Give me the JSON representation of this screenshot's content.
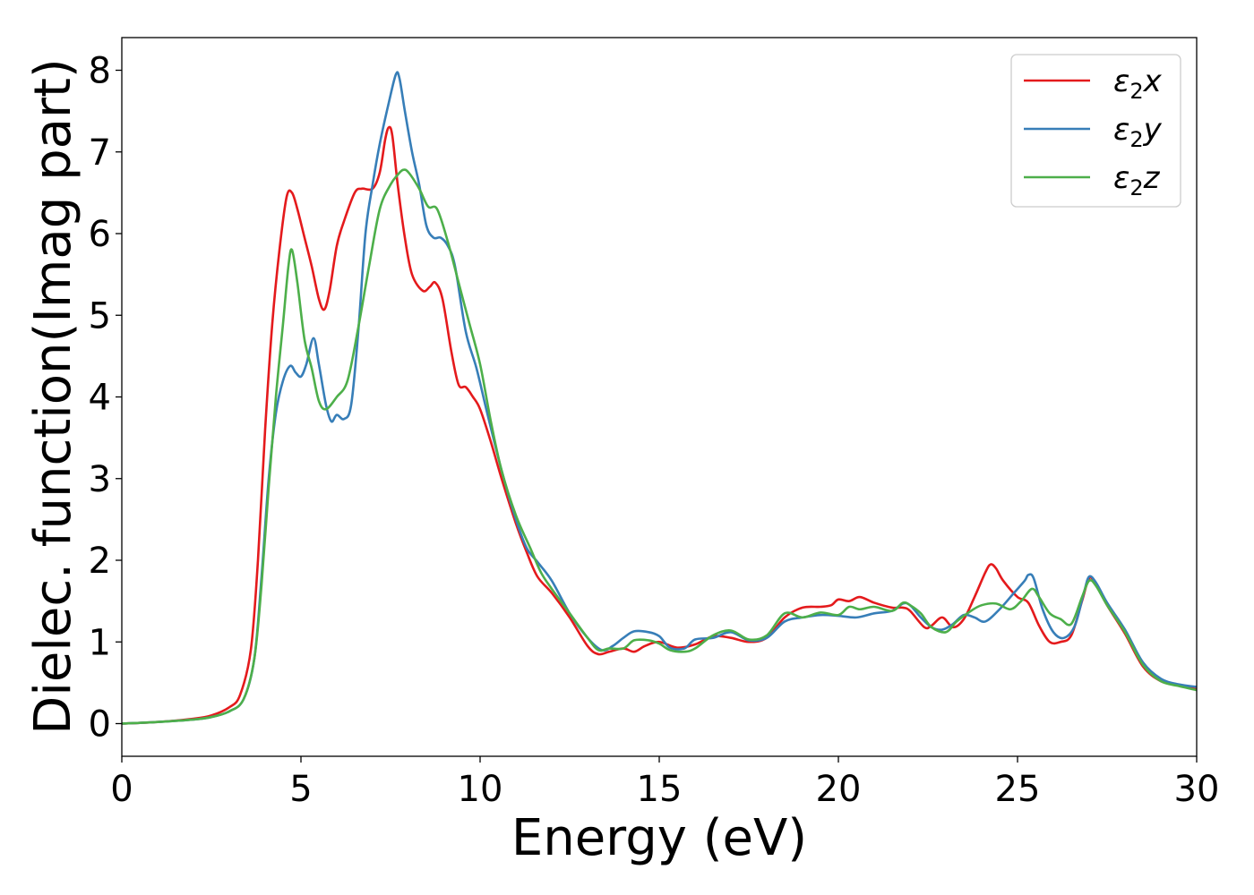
{
  "chart_data": {
    "type": "line",
    "xlabel": "Energy (eV)",
    "ylabel": "Dielec. function(Imag part)",
    "xlim": [
      0,
      30
    ],
    "ylim": [
      -0.4,
      8.4
    ],
    "xticks": [
      0,
      5,
      10,
      15,
      20,
      25,
      30
    ],
    "yticks": [
      0,
      1,
      2,
      3,
      4,
      5,
      6,
      7,
      8
    ],
    "legend_position": "top-right",
    "grid": false,
    "series": [
      {
        "name": "ε2x",
        "legend_base": "ε",
        "legend_sub": "2",
        "legend_var": "x",
        "color": "#e41a1c",
        "points": [
          [
            0,
            0
          ],
          [
            1,
            0.02
          ],
          [
            2,
            0.06
          ],
          [
            2.5,
            0.1
          ],
          [
            3,
            0.2
          ],
          [
            3.3,
            0.35
          ],
          [
            3.6,
            0.9
          ],
          [
            3.8,
            2.0
          ],
          [
            4.0,
            3.6
          ],
          [
            4.2,
            4.9
          ],
          [
            4.4,
            5.8
          ],
          [
            4.6,
            6.45
          ],
          [
            4.75,
            6.5
          ],
          [
            4.9,
            6.3
          ],
          [
            5.1,
            5.95
          ],
          [
            5.3,
            5.6
          ],
          [
            5.5,
            5.2
          ],
          [
            5.65,
            5.07
          ],
          [
            5.8,
            5.3
          ],
          [
            6.0,
            5.85
          ],
          [
            6.2,
            6.15
          ],
          [
            6.5,
            6.5
          ],
          [
            6.7,
            6.55
          ],
          [
            7.0,
            6.55
          ],
          [
            7.2,
            6.75
          ],
          [
            7.35,
            7.15
          ],
          [
            7.45,
            7.3
          ],
          [
            7.55,
            7.2
          ],
          [
            7.7,
            6.6
          ],
          [
            7.9,
            5.95
          ],
          [
            8.1,
            5.5
          ],
          [
            8.4,
            5.3
          ],
          [
            8.6,
            5.35
          ],
          [
            8.75,
            5.4
          ],
          [
            8.95,
            5.2
          ],
          [
            9.2,
            4.55
          ],
          [
            9.4,
            4.15
          ],
          [
            9.6,
            4.12
          ],
          [
            9.8,
            4.0
          ],
          [
            10.0,
            3.85
          ],
          [
            10.3,
            3.45
          ],
          [
            10.6,
            3.0
          ],
          [
            11.0,
            2.45
          ],
          [
            11.3,
            2.1
          ],
          [
            11.6,
            1.8
          ],
          [
            12.0,
            1.6
          ],
          [
            12.5,
            1.3
          ],
          [
            13.0,
            0.95
          ],
          [
            13.3,
            0.85
          ],
          [
            13.6,
            0.88
          ],
          [
            14.0,
            0.92
          ],
          [
            14.3,
            0.88
          ],
          [
            14.6,
            0.95
          ],
          [
            15.0,
            1.0
          ],
          [
            15.5,
            0.93
          ],
          [
            16.0,
            0.97
          ],
          [
            16.5,
            1.07
          ],
          [
            17.0,
            1.05
          ],
          [
            17.5,
            1.0
          ],
          [
            18.0,
            1.05
          ],
          [
            18.5,
            1.3
          ],
          [
            19.0,
            1.42
          ],
          [
            19.5,
            1.43
          ],
          [
            19.8,
            1.45
          ],
          [
            20.0,
            1.52
          ],
          [
            20.3,
            1.5
          ],
          [
            20.6,
            1.55
          ],
          [
            21.0,
            1.48
          ],
          [
            21.5,
            1.42
          ],
          [
            21.8,
            1.42
          ],
          [
            22.0,
            1.38
          ],
          [
            22.4,
            1.18
          ],
          [
            22.6,
            1.2
          ],
          [
            22.9,
            1.3
          ],
          [
            23.2,
            1.18
          ],
          [
            23.5,
            1.28
          ],
          [
            23.8,
            1.55
          ],
          [
            24.1,
            1.85
          ],
          [
            24.25,
            1.95
          ],
          [
            24.4,
            1.9
          ],
          [
            24.6,
            1.75
          ],
          [
            25.0,
            1.55
          ],
          [
            25.3,
            1.48
          ],
          [
            25.6,
            1.2
          ],
          [
            25.9,
            1.0
          ],
          [
            26.2,
            1.0
          ],
          [
            26.5,
            1.08
          ],
          [
            26.8,
            1.5
          ],
          [
            27.0,
            1.78
          ],
          [
            27.2,
            1.7
          ],
          [
            27.5,
            1.45
          ],
          [
            28.0,
            1.1
          ],
          [
            28.5,
            0.7
          ],
          [
            29.0,
            0.52
          ],
          [
            29.5,
            0.47
          ],
          [
            30.0,
            0.42
          ]
        ]
      },
      {
        "name": "ε2y",
        "legend_base": "ε",
        "legend_sub": "2",
        "legend_var": "y",
        "color": "#377eb8",
        "points": [
          [
            0,
            0
          ],
          [
            1,
            0.02
          ],
          [
            2,
            0.05
          ],
          [
            2.5,
            0.08
          ],
          [
            3,
            0.15
          ],
          [
            3.4,
            0.3
          ],
          [
            3.7,
            0.8
          ],
          [
            3.9,
            1.8
          ],
          [
            4.1,
            3.0
          ],
          [
            4.3,
            3.8
          ],
          [
            4.5,
            4.2
          ],
          [
            4.7,
            4.38
          ],
          [
            4.85,
            4.3
          ],
          [
            5.0,
            4.25
          ],
          [
            5.15,
            4.4
          ],
          [
            5.35,
            4.72
          ],
          [
            5.5,
            4.4
          ],
          [
            5.7,
            3.9
          ],
          [
            5.85,
            3.7
          ],
          [
            6.0,
            3.78
          ],
          [
            6.2,
            3.73
          ],
          [
            6.4,
            3.9
          ],
          [
            6.6,
            4.8
          ],
          [
            6.8,
            6.0
          ],
          [
            7.0,
            6.6
          ],
          [
            7.2,
            7.1
          ],
          [
            7.45,
            7.6
          ],
          [
            7.65,
            7.95
          ],
          [
            7.75,
            7.9
          ],
          [
            7.9,
            7.5
          ],
          [
            8.1,
            7.0
          ],
          [
            8.3,
            6.6
          ],
          [
            8.5,
            6.1
          ],
          [
            8.7,
            5.95
          ],
          [
            8.9,
            5.95
          ],
          [
            9.1,
            5.85
          ],
          [
            9.3,
            5.6
          ],
          [
            9.6,
            4.8
          ],
          [
            9.9,
            4.35
          ],
          [
            10.2,
            3.8
          ],
          [
            10.6,
            3.1
          ],
          [
            11.0,
            2.5
          ],
          [
            11.3,
            2.15
          ],
          [
            11.6,
            1.98
          ],
          [
            12.0,
            1.75
          ],
          [
            12.5,
            1.35
          ],
          [
            13.0,
            1.05
          ],
          [
            13.4,
            0.9
          ],
          [
            13.7,
            0.95
          ],
          [
            14.0,
            1.05
          ],
          [
            14.3,
            1.13
          ],
          [
            14.7,
            1.12
          ],
          [
            15.0,
            1.07
          ],
          [
            15.3,
            0.93
          ],
          [
            15.7,
            0.92
          ],
          [
            16.0,
            1.03
          ],
          [
            16.5,
            1.05
          ],
          [
            17.0,
            1.12
          ],
          [
            17.5,
            1.02
          ],
          [
            18.0,
            1.05
          ],
          [
            18.5,
            1.25
          ],
          [
            19.0,
            1.3
          ],
          [
            19.5,
            1.33
          ],
          [
            20.0,
            1.32
          ],
          [
            20.5,
            1.3
          ],
          [
            21.0,
            1.35
          ],
          [
            21.5,
            1.38
          ],
          [
            21.8,
            1.47
          ],
          [
            22.0,
            1.45
          ],
          [
            22.3,
            1.3
          ],
          [
            22.6,
            1.18
          ],
          [
            22.9,
            1.15
          ],
          [
            23.2,
            1.22
          ],
          [
            23.5,
            1.33
          ],
          [
            23.8,
            1.3
          ],
          [
            24.1,
            1.25
          ],
          [
            24.5,
            1.4
          ],
          [
            24.9,
            1.6
          ],
          [
            25.2,
            1.75
          ],
          [
            25.3,
            1.82
          ],
          [
            25.45,
            1.78
          ],
          [
            25.7,
            1.4
          ],
          [
            26.0,
            1.12
          ],
          [
            26.3,
            1.05
          ],
          [
            26.6,
            1.2
          ],
          [
            26.85,
            1.6
          ],
          [
            27.0,
            1.8
          ],
          [
            27.2,
            1.72
          ],
          [
            27.5,
            1.48
          ],
          [
            28.0,
            1.15
          ],
          [
            28.5,
            0.75
          ],
          [
            29.0,
            0.55
          ],
          [
            29.5,
            0.48
          ],
          [
            30.0,
            0.45
          ]
        ]
      },
      {
        "name": "ε2z",
        "legend_base": "ε",
        "legend_sub": "2",
        "legend_var": "z",
        "color": "#4daf4a",
        "points": [
          [
            0,
            0
          ],
          [
            1,
            0.02
          ],
          [
            2,
            0.05
          ],
          [
            2.5,
            0.08
          ],
          [
            3,
            0.15
          ],
          [
            3.4,
            0.3
          ],
          [
            3.7,
            0.8
          ],
          [
            3.9,
            1.7
          ],
          [
            4.1,
            2.9
          ],
          [
            4.3,
            4.0
          ],
          [
            4.5,
            4.9
          ],
          [
            4.65,
            5.6
          ],
          [
            4.75,
            5.8
          ],
          [
            4.9,
            5.4
          ],
          [
            5.1,
            4.7
          ],
          [
            5.3,
            4.35
          ],
          [
            5.5,
            3.95
          ],
          [
            5.7,
            3.85
          ],
          [
            6.0,
            4.0
          ],
          [
            6.3,
            4.2
          ],
          [
            6.6,
            4.85
          ],
          [
            6.9,
            5.6
          ],
          [
            7.2,
            6.3
          ],
          [
            7.5,
            6.6
          ],
          [
            7.7,
            6.72
          ],
          [
            7.85,
            6.78
          ],
          [
            8.0,
            6.75
          ],
          [
            8.3,
            6.55
          ],
          [
            8.55,
            6.33
          ],
          [
            8.8,
            6.3
          ],
          [
            9.1,
            5.9
          ],
          [
            9.4,
            5.4
          ],
          [
            9.7,
            4.9
          ],
          [
            10.0,
            4.4
          ],
          [
            10.3,
            3.7
          ],
          [
            10.6,
            3.1
          ],
          [
            11.0,
            2.55
          ],
          [
            11.4,
            2.15
          ],
          [
            11.7,
            1.85
          ],
          [
            12.0,
            1.65
          ],
          [
            12.5,
            1.35
          ],
          [
            13.0,
            1.05
          ],
          [
            13.3,
            0.9
          ],
          [
            13.6,
            0.92
          ],
          [
            14.0,
            0.92
          ],
          [
            14.3,
            1.02
          ],
          [
            14.7,
            1.02
          ],
          [
            15.0,
            0.98
          ],
          [
            15.3,
            0.9
          ],
          [
            15.7,
            0.88
          ],
          [
            16.0,
            0.92
          ],
          [
            16.5,
            1.08
          ],
          [
            17.0,
            1.14
          ],
          [
            17.5,
            1.03
          ],
          [
            18.0,
            1.08
          ],
          [
            18.5,
            1.35
          ],
          [
            19.0,
            1.3
          ],
          [
            19.5,
            1.36
          ],
          [
            20.0,
            1.33
          ],
          [
            20.3,
            1.43
          ],
          [
            20.6,
            1.4
          ],
          [
            21.0,
            1.43
          ],
          [
            21.5,
            1.38
          ],
          [
            21.8,
            1.48
          ],
          [
            22.0,
            1.45
          ],
          [
            22.3,
            1.35
          ],
          [
            22.6,
            1.18
          ],
          [
            23.0,
            1.12
          ],
          [
            23.3,
            1.25
          ],
          [
            23.7,
            1.38
          ],
          [
            24.0,
            1.45
          ],
          [
            24.4,
            1.47
          ],
          [
            24.8,
            1.4
          ],
          [
            25.1,
            1.5
          ],
          [
            25.4,
            1.65
          ],
          [
            25.6,
            1.55
          ],
          [
            25.9,
            1.35
          ],
          [
            26.2,
            1.28
          ],
          [
            26.5,
            1.22
          ],
          [
            26.8,
            1.55
          ],
          [
            27.0,
            1.75
          ],
          [
            27.2,
            1.68
          ],
          [
            27.5,
            1.45
          ],
          [
            28.0,
            1.12
          ],
          [
            28.5,
            0.72
          ],
          [
            29.0,
            0.52
          ],
          [
            29.5,
            0.46
          ],
          [
            30.0,
            0.41
          ]
        ]
      }
    ]
  }
}
